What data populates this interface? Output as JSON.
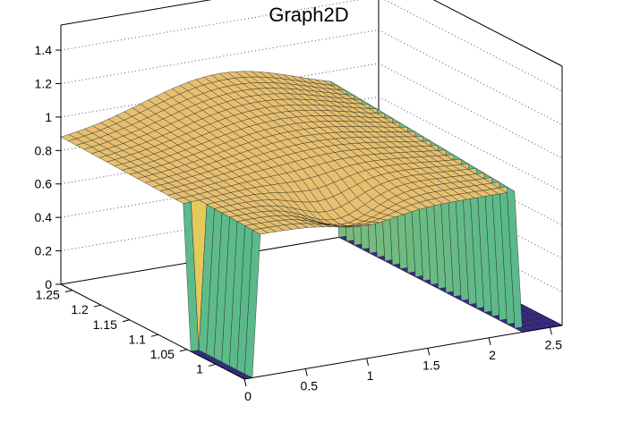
{
  "chart_data": {
    "type": "surface",
    "title": "Graph2D",
    "xlabel": "",
    "ylabel": "",
    "zlabel": "",
    "xlim": [
      0,
      2.6
    ],
    "ylim": [
      0.95,
      1.27
    ],
    "zlim": [
      0,
      1.55
    ],
    "x_ticks": [
      "0",
      "0.5",
      "1",
      "1.5",
      "2",
      "2.5"
    ],
    "y_ticks": [
      "1",
      "1.05",
      "1.1",
      "1.15",
      "1.2",
      "1.25"
    ],
    "z_ticks": [
      "0",
      "0.2",
      "0.4",
      "0.6",
      "0.8",
      "1",
      "1.2",
      "1.4"
    ],
    "grid": true,
    "colormap": "parula",
    "plateau_level": 0.85,
    "plateau_peak": 1.1,
    "notch_depth": 0.15,
    "drop_regions": [
      {
        "x_range": [
          0,
          0.1
        ],
        "y_range": [
          0.95,
          1.05
        ],
        "z": 0
      },
      {
        "x_range": [
          2.25,
          2.6
        ],
        "y_range": [
          0.95,
          1.27
        ],
        "z": 0
      }
    ]
  }
}
